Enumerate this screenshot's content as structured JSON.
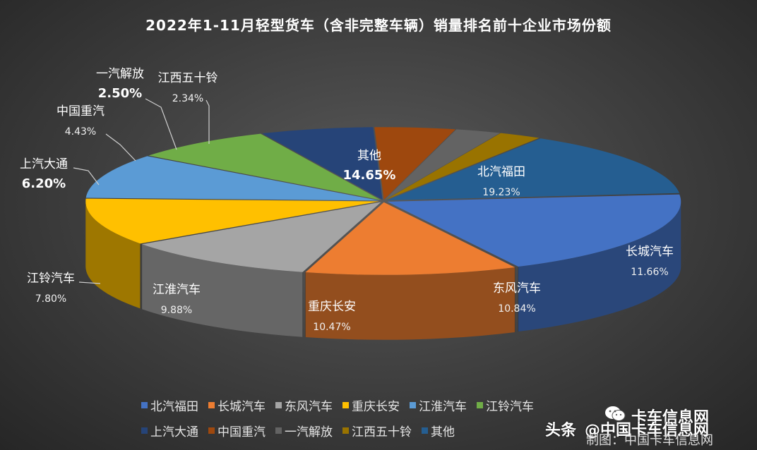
{
  "chart_data": {
    "type": "pie",
    "title": "2022年1-11月轻型货车（含非完整车辆）销量排名前十企业市场份额",
    "categories": [
      "北汽福田",
      "长城汽车",
      "东风汽车",
      "重庆长安",
      "江淮汽车",
      "江铃汽车",
      "上汽大通",
      "中国重汽",
      "一汽解放",
      "江西五十铃",
      "其他"
    ],
    "values": [
      19.23,
      11.66,
      10.84,
      10.47,
      9.88,
      7.8,
      6.2,
      4.43,
      2.5,
      2.34,
      14.65
    ],
    "value_labels": [
      "19.23%",
      "11.66%",
      "10.84%",
      "10.47%",
      "9.88%",
      "7.80%",
      "6.20%",
      "4.43%",
      "2.50%",
      "2.34%",
      "14.65%"
    ],
    "colors": [
      "#4472c4",
      "#ed7d31",
      "#a5a5a5",
      "#ffc000",
      "#5b9bd5",
      "#70ad47",
      "#264478",
      "#9e480e",
      "#636363",
      "#997300",
      "#255e91"
    ],
    "legend_position": "bottom",
    "style": "3d-exploded"
  },
  "legend": {
    "items": [
      "北汽福田",
      "长城汽车",
      "东风汽车",
      "重庆长安",
      "江淮汽车",
      "江铃汽车",
      "上汽大通",
      "中国重汽",
      "一汽解放",
      "江西五十铃",
      "其他"
    ]
  },
  "watermark": {
    "brand": "卡车信息网",
    "platform": "头条",
    "handle": "@中国卡车信息网",
    "credit": "制图：中国卡车信息网"
  }
}
